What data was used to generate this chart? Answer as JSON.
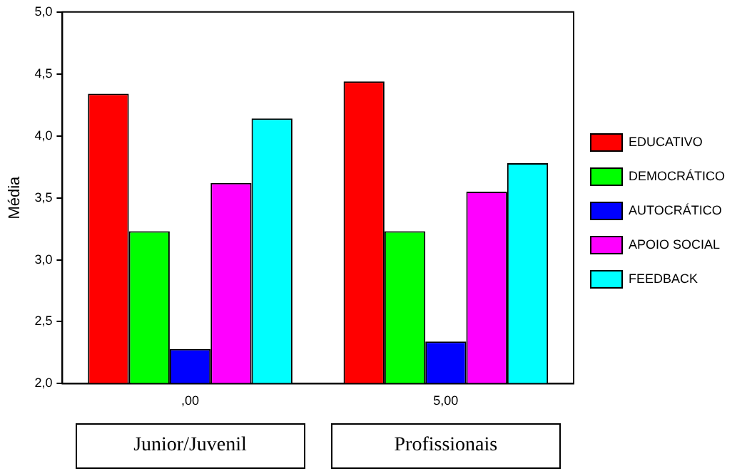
{
  "chart_data": {
    "type": "bar",
    "ylabel": "Média",
    "categories": [
      ",00",
      "5,00"
    ],
    "series": [
      {
        "name": "EDUCATIVO",
        "color": "#ff0000",
        "values": [
          4.34,
          4.44
        ]
      },
      {
        "name": "DEMOCRÁTICO",
        "color": "#00ff00",
        "values": [
          3.23,
          3.23
        ]
      },
      {
        "name": "AUTOCRÁTICO",
        "color": "#0000ff",
        "values": [
          2.28,
          2.34
        ]
      },
      {
        "name": "APOIO SOCIAL",
        "color": "#ff00ff",
        "values": [
          3.62,
          3.55
        ]
      },
      {
        "name": "FEEDBACK",
        "color": "#00ffff",
        "values": [
          4.14,
          3.78
        ]
      }
    ],
    "ylim": [
      2.0,
      5.0
    ],
    "yticks": [
      {
        "value": 2.0,
        "label": "2,0"
      },
      {
        "value": 2.5,
        "label": "2,5"
      },
      {
        "value": 3.0,
        "label": "3,0"
      },
      {
        "value": 3.5,
        "label": "3,5"
      },
      {
        "value": 4.0,
        "label": "4,0"
      },
      {
        "value": 4.5,
        "label": "4,5"
      },
      {
        "value": 5.0,
        "label": "5,0"
      }
    ],
    "grid": false,
    "legend": "right",
    "annotations": [
      "Junior/Juvenil",
      "Profissionais"
    ]
  }
}
